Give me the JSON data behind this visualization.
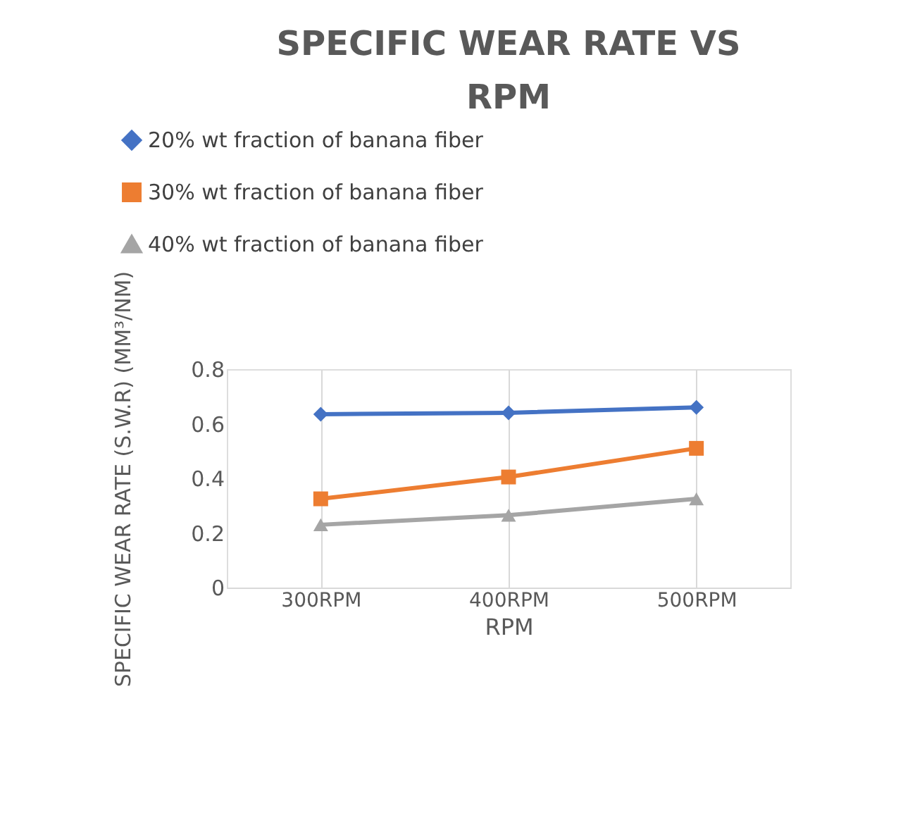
{
  "chart_data": {
    "type": "line",
    "title": "SPECIFIC  WEAR RATE VS RPM",
    "xlabel": "RPM",
    "ylabel": "SPECIFIC WEAR RATE (S.W.R) (MM³/NM)",
    "categories": [
      "300RPM",
      "400RPM",
      "500RPM"
    ],
    "series": [
      {
        "name": "20% wt fraction of  banana fiber",
        "color": "#4472c4",
        "marker": "diamond",
        "values": [
          0.635,
          0.64,
          0.66
        ]
      },
      {
        "name": "30% wt fraction of  banana fiber",
        "color": "#ed7d31",
        "marker": "square",
        "values": [
          0.325,
          0.405,
          0.51
        ]
      },
      {
        "name": "40% wt fraction of  banana fiber",
        "color": "#a5a5a5",
        "marker": "triangle",
        "values": [
          0.23,
          0.265,
          0.325
        ]
      }
    ],
    "ylim": [
      0,
      0.8
    ],
    "yticks": [
      0,
      0.2,
      0.4,
      0.6,
      0.8
    ],
    "grid": "x",
    "legend": "top",
    "line_style": "solid"
  }
}
